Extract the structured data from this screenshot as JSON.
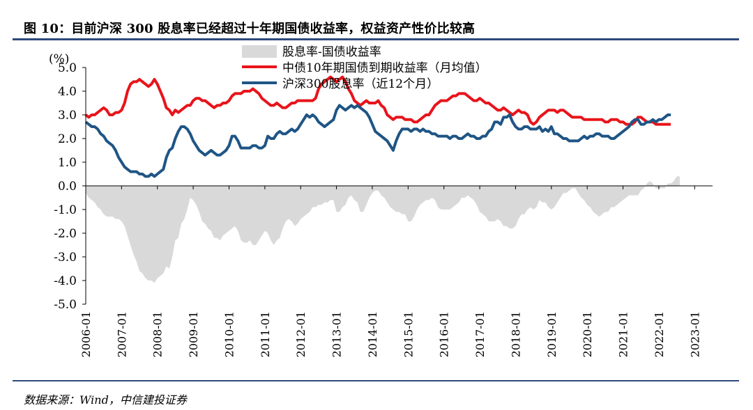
{
  "figure": {
    "title": "图 10：目前沪深 300 股息率已经超过十年期国债收益率，权益资产性价比较高",
    "source": "数据来源：Wind，中信建投证券"
  },
  "colors": {
    "spread": "#d9d9d9",
    "bond": "#e8141b",
    "dividend": "#1f5585",
    "rule": "#2e4a7d"
  },
  "chart_data": {
    "type": "line",
    "unit_label": "(%)",
    "ylim": [
      -5,
      5
    ],
    "yticks": [
      5,
      4,
      3,
      2,
      1,
      0,
      -1,
      -2,
      -3,
      -4,
      -5
    ],
    "ytick_labels": [
      "5.0",
      "4.0",
      "3.0",
      "2.0",
      "1.0",
      "0.0",
      "-1.0",
      "-2.0",
      "-3.0",
      "-4.0",
      "-5.0"
    ],
    "xticks": [
      "2006-01",
      "2007-01",
      "2008-01",
      "2009-01",
      "2010-01",
      "2011-01",
      "2012-01",
      "2013-01",
      "2014-01",
      "2015-01",
      "2016-01",
      "2017-01",
      "2018-01",
      "2019-01",
      "2020-01",
      "2021-01",
      "2022-01",
      "2023-01"
    ],
    "x_start": "2006-01",
    "x_end": "2023-07",
    "grid": false,
    "legend_position": "top-center",
    "series": [
      {
        "name": "股息率-国债收益率",
        "type": "area",
        "values": [
          -0.3,
          -0.5,
          -0.6,
          -0.7,
          -0.9,
          -1.0,
          -1.2,
          -1.3,
          -1.3,
          -1.3,
          -1.4,
          -1.4,
          -1.5,
          -1.7,
          -2.1,
          -2.5,
          -2.9,
          -3.2,
          -3.6,
          -3.7,
          -3.9,
          -4.0,
          -4.0,
          -4.1,
          -3.9,
          -3.8,
          -3.7,
          -3.4,
          -3.5,
          -3.0,
          -2.3,
          -2.2,
          -1.6,
          -1.4,
          -1.0,
          -0.5,
          -0.6,
          -0.8,
          -1.1,
          -1.5,
          -1.6,
          -1.8,
          -1.9,
          -2.2,
          -2.2,
          -2.3,
          -2.1,
          -2.0,
          -1.9,
          -1.8,
          -1.7,
          -1.9,
          -2.3,
          -2.4,
          -2.4,
          -2.3,
          -2.5,
          -2.5,
          -2.3,
          -2.1,
          -1.9,
          -2.0,
          -2.3,
          -2.5,
          -2.3,
          -2.2,
          -1.8,
          -1.5,
          -1.4,
          -1.5,
          -1.7,
          -1.6,
          -1.4,
          -1.3,
          -1.2,
          -1.1,
          -0.9,
          -0.9,
          -0.8,
          -0.8,
          -0.7,
          -0.7,
          -0.6,
          -0.6,
          -1.1,
          -1.1,
          -0.9,
          -0.8,
          -0.5,
          -0.4,
          -0.6,
          -0.7,
          -1.1,
          -1.1,
          -0.8,
          -0.5,
          -0.3,
          -0.2,
          -0.2,
          -0.4,
          -0.5,
          -0.7,
          -0.9,
          -1.0,
          -1.1,
          -1.1,
          -1.2,
          -1.2,
          -1.5,
          -1.5,
          -1.3,
          -1.0,
          -0.8,
          -0.7,
          -0.6,
          -0.6,
          -0.5,
          -0.6,
          -0.9,
          -1.0,
          -1.0,
          -1.0,
          -1.0,
          -0.9,
          -0.8,
          -0.7,
          -0.5,
          -0.5,
          -0.4,
          -0.5,
          -0.6,
          -0.8,
          -1.1,
          -1.2,
          -1.3,
          -1.5,
          -1.5,
          -1.5,
          -1.4,
          -1.5,
          -1.7,
          -1.7,
          -1.8,
          -1.8,
          -1.7,
          -1.4,
          -1.2,
          -1.2,
          -1.0,
          -0.9,
          -1.0,
          -0.9,
          -0.6,
          -0.7,
          -0.7,
          -0.9,
          -1.0,
          -0.9,
          -0.7,
          -0.5,
          -0.3,
          -0.3,
          -0.2,
          -0.1,
          -0.1,
          -0.3,
          -0.5,
          -0.6,
          -0.8,
          -0.9,
          -1.1,
          -1.2,
          -1.3,
          -1.2,
          -1.1,
          -1.1,
          -0.9,
          -0.9,
          -0.8,
          -0.7,
          -0.6,
          -0.5,
          -0.4,
          -0.4,
          -0.4,
          -0.4,
          -0.2,
          -0.1,
          0.1,
          0.2,
          0.1,
          -0.1,
          -0.1,
          -0.1,
          -0.1,
          0.1,
          0.1,
          0.2,
          0.4,
          0.4
        ]
      },
      {
        "name": "中债10年期国债到期收益率（月均值）",
        "type": "line",
        "values": [
          3.0,
          2.9,
          3.0,
          3.0,
          3.1,
          3.2,
          3.3,
          3.2,
          3.0,
          3.0,
          3.1,
          3.1,
          3.2,
          3.5,
          4.0,
          4.3,
          4.4,
          4.4,
          4.5,
          4.4,
          4.3,
          4.2,
          4.3,
          4.5,
          4.3,
          4.0,
          3.7,
          3.3,
          3.2,
          3.0,
          3.2,
          3.1,
          3.2,
          3.3,
          3.4,
          3.4,
          3.6,
          3.7,
          3.7,
          3.6,
          3.6,
          3.5,
          3.4,
          3.3,
          3.4,
          3.4,
          3.5,
          3.5,
          3.6,
          3.8,
          3.9,
          3.9,
          3.9,
          4.0,
          4.0,
          4.0,
          4.1,
          4.0,
          3.9,
          3.7,
          3.6,
          3.5,
          3.4,
          3.4,
          3.5,
          3.4,
          3.3,
          3.3,
          3.4,
          3.5,
          3.5,
          3.6,
          3.6,
          3.6,
          3.6,
          3.6,
          3.6,
          3.7,
          4.1,
          4.3,
          4.4,
          4.5,
          4.6,
          4.5,
          4.4,
          4.5,
          4.6,
          4.4,
          4.1,
          3.9,
          3.6,
          3.5,
          3.4,
          3.5,
          3.6,
          3.5,
          3.5,
          3.5,
          3.6,
          3.4,
          3.3,
          3.0,
          2.9,
          2.8,
          2.9,
          2.9,
          2.9,
          2.8,
          2.8,
          2.8,
          2.7,
          2.7,
          2.8,
          2.9,
          3.0,
          3.0,
          3.2,
          3.4,
          3.5,
          3.6,
          3.6,
          3.6,
          3.7,
          3.8,
          3.8,
          3.9,
          3.9,
          3.9,
          3.8,
          3.7,
          3.6,
          3.6,
          3.7,
          3.6,
          3.5,
          3.5,
          3.4,
          3.3,
          3.2,
          3.2,
          3.3,
          3.2,
          3.1,
          3.0,
          3.1,
          3.2,
          3.1,
          3.1,
          3.0,
          2.7,
          2.6,
          2.7,
          2.9,
          3.0,
          3.1,
          3.2,
          3.2,
          3.2,
          3.1,
          3.2,
          3.2,
          3.1,
          3.0,
          2.9,
          2.9,
          2.9,
          2.9,
          2.8,
          2.8,
          2.8,
          2.8,
          2.8,
          2.8,
          2.8,
          2.7,
          2.7,
          2.8,
          2.8,
          2.8,
          2.7,
          2.7,
          2.6,
          2.6,
          2.6,
          2.7,
          2.9,
          2.9,
          2.8,
          2.7,
          2.7,
          2.7,
          2.6,
          2.6,
          2.6,
          2.6,
          2.6,
          2.6
        ]
      },
      {
        "name": "沪深300股息率（近12个月）",
        "type": "line",
        "values": [
          2.7,
          2.6,
          2.5,
          2.5,
          2.4,
          2.2,
          2.1,
          1.9,
          1.8,
          1.7,
          1.5,
          1.2,
          1.0,
          0.8,
          0.7,
          0.6,
          0.6,
          0.6,
          0.5,
          0.5,
          0.4,
          0.4,
          0.5,
          0.4,
          0.5,
          0.6,
          0.7,
          1.2,
          1.5,
          1.6,
          2.0,
          2.3,
          2.5,
          2.5,
          2.4,
          2.2,
          1.9,
          1.7,
          1.5,
          1.4,
          1.3,
          1.4,
          1.5,
          1.4,
          1.3,
          1.3,
          1.4,
          1.5,
          1.7,
          2.1,
          2.1,
          1.9,
          1.6,
          1.6,
          1.6,
          1.6,
          1.7,
          1.7,
          1.6,
          1.6,
          1.7,
          2.1,
          2.0,
          2.0,
          2.2,
          2.3,
          2.2,
          2.2,
          2.3,
          2.4,
          2.3,
          2.4,
          2.6,
          2.8,
          3.0,
          2.9,
          3.0,
          2.9,
          2.7,
          2.6,
          2.5,
          2.6,
          2.7,
          2.8,
          3.2,
          3.4,
          3.3,
          3.2,
          3.3,
          3.4,
          3.3,
          3.4,
          3.3,
          3.2,
          3.1,
          2.9,
          2.6,
          2.3,
          2.2,
          2.1,
          2.0,
          1.9,
          1.7,
          1.5,
          1.9,
          2.2,
          2.4,
          2.4,
          2.4,
          2.3,
          2.4,
          2.4,
          2.3,
          2.4,
          2.3,
          2.3,
          2.2,
          2.2,
          2.1,
          2.1,
          2.1,
          2.1,
          2.0,
          2.1,
          2.1,
          2.0,
          2.0,
          2.1,
          2.2,
          2.1,
          2.1,
          2.0,
          2.0,
          2.1,
          2.1,
          2.3,
          2.4,
          2.7,
          2.7,
          2.6,
          2.9,
          2.9,
          3.0,
          2.7,
          2.5,
          2.4,
          2.4,
          2.5,
          2.5,
          2.4,
          2.4,
          2.4,
          2.5,
          2.3,
          2.4,
          2.3,
          2.5,
          2.2,
          2.2,
          2.1,
          2.0,
          2.0,
          1.9,
          1.9,
          1.9,
          1.9,
          2.0,
          2.1,
          2.0,
          2.1,
          2.1,
          2.2,
          2.2,
          2.1,
          2.1,
          2.1,
          2.0,
          2.0,
          2.1,
          2.2,
          2.3,
          2.4,
          2.5,
          2.7,
          2.8,
          2.8,
          2.6,
          2.6,
          2.7,
          2.7,
          2.8,
          2.7,
          2.8,
          2.8,
          2.9,
          3.0,
          3.0
        ]
      }
    ]
  }
}
